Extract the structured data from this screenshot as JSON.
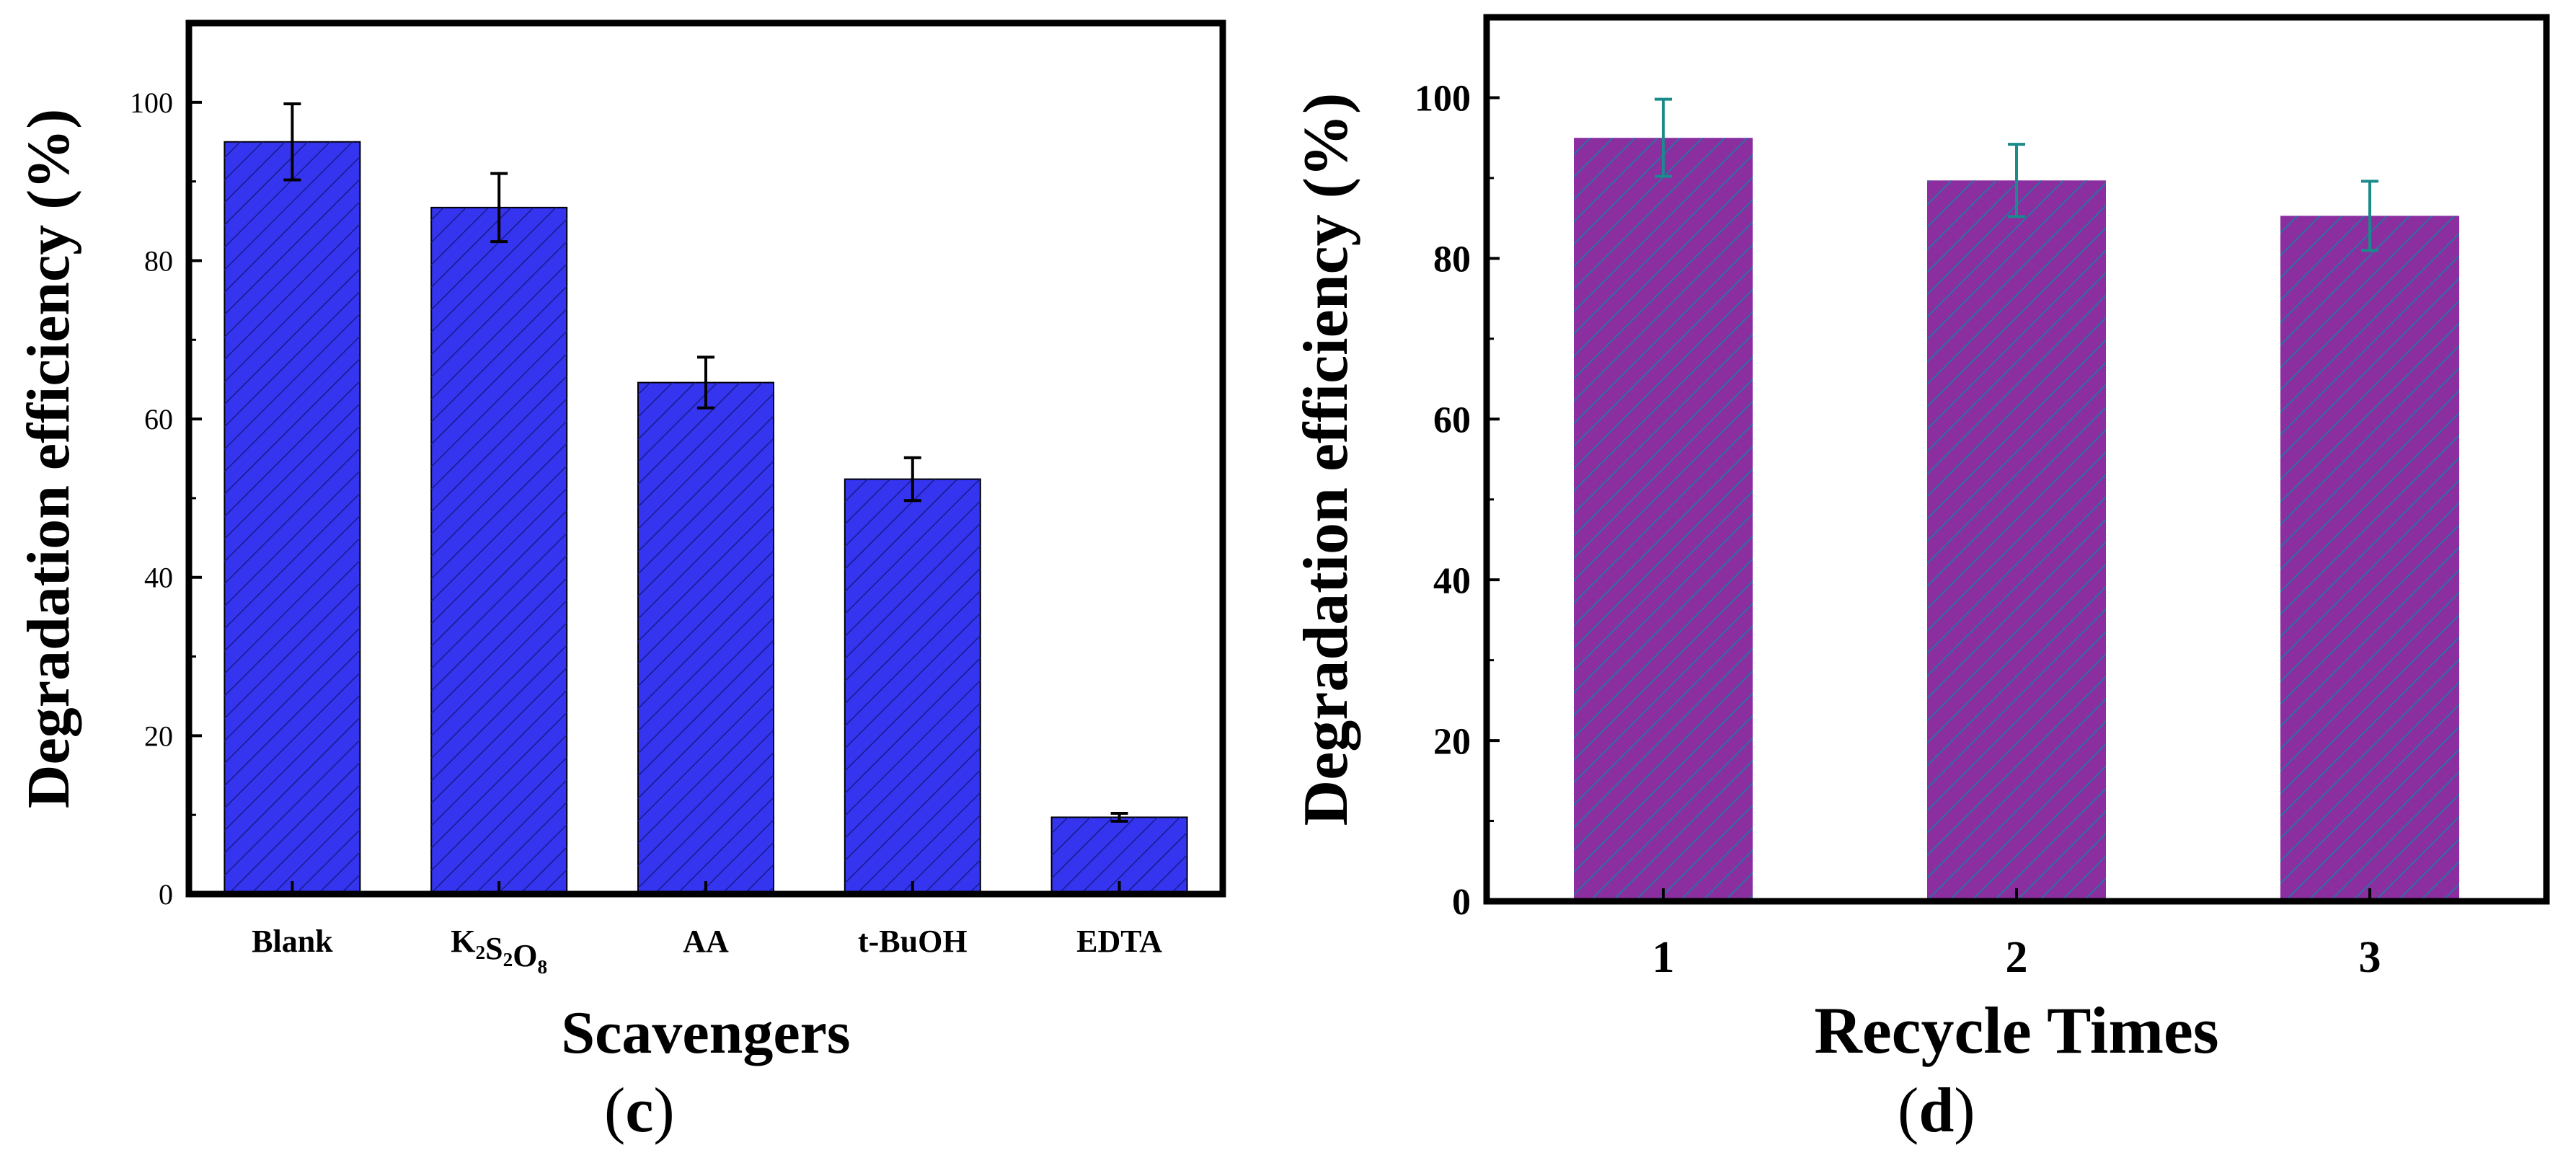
{
  "chart_data": [
    {
      "type": "bar",
      "panel_label": "c",
      "categories": [
        "Blank",
        "K2S2O8",
        "AA",
        "t-BuOH",
        "EDTA"
      ],
      "category_display": [
        {
          "parts": [
            {
              "t": "Blank"
            }
          ]
        },
        {
          "parts": [
            {
              "t": "K"
            },
            {
              "t": "2",
              "sub": true
            },
            {
              "t": "S"
            },
            {
              "t": "2",
              "sub": true
            },
            {
              "t": "O"
            },
            {
              "t": "8",
              "sub": true
            }
          ]
        },
        {
          "parts": [
            {
              "t": "AA"
            }
          ]
        },
        {
          "parts": [
            {
              "t": "t-BuOH"
            }
          ]
        },
        {
          "parts": [
            {
              "t": "EDTA"
            }
          ]
        }
      ],
      "values": [
        95.0,
        86.7,
        64.6,
        52.4,
        9.7
      ],
      "errors": [
        4.8,
        4.3,
        3.2,
        2.7,
        0.5
      ],
      "xlabel": "Scavengers",
      "ylabel": "Degradation efficiency (%)",
      "ylim": [
        0,
        110
      ],
      "yticks": [
        0,
        20,
        40,
        60,
        80,
        100
      ],
      "bar_color": "#3535f0",
      "hatch_color": "#1a1a8a",
      "error_bar_color": "#000000",
      "grid": false,
      "legend": "none"
    },
    {
      "type": "bar",
      "panel_label": "d",
      "categories": [
        "1",
        "2",
        "3"
      ],
      "values": [
        95.0,
        89.7,
        85.3
      ],
      "errors": [
        4.8,
        4.5,
        4.3
      ],
      "xlabel": "Recycle Times",
      "ylabel": "Degradation efficiency (%)",
      "ylim": [
        0,
        110
      ],
      "yticks": [
        0,
        20,
        40,
        60,
        80,
        100
      ],
      "bar_color": "#8a2ea0",
      "hatch_color": "#2f6fa0",
      "error_bar_color": "#1a8a8a",
      "grid": false,
      "legend": "none"
    }
  ]
}
